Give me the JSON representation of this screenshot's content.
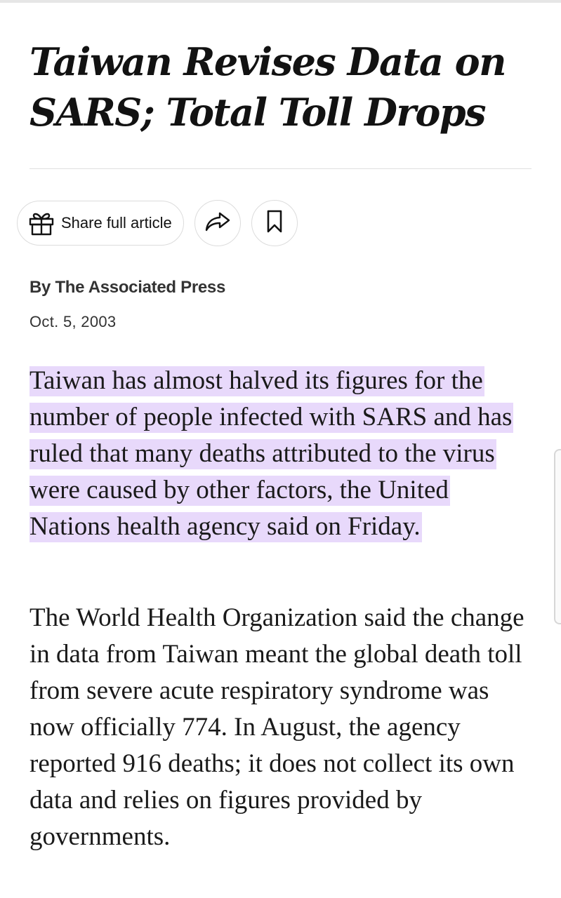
{
  "article": {
    "headline": "Taiwan Revises Data on SARS; Total Toll Drops",
    "share": {
      "share_label": "Share full article",
      "share_icon": "gift-icon",
      "forward_icon": "share-arrow-icon",
      "save_icon": "bookmark-icon"
    },
    "byline": "By The Associated Press",
    "date": "Oct. 5, 2003",
    "paragraphs": [
      "Taiwan has almost halved its figures for the number of people infected with SARS and has ruled that many deaths attributed to the virus were caused by other factors, the United Nations health agency said on Friday.",
      "The World Health Organization said the change in data from Taiwan meant the global death toll from severe acute respiratory syndrome was now officially 774. In August, the agency reported 916 deaths; it does not collect its own data and relies on figures provided by governments."
    ],
    "highlight_color": "#e8d9fb"
  }
}
